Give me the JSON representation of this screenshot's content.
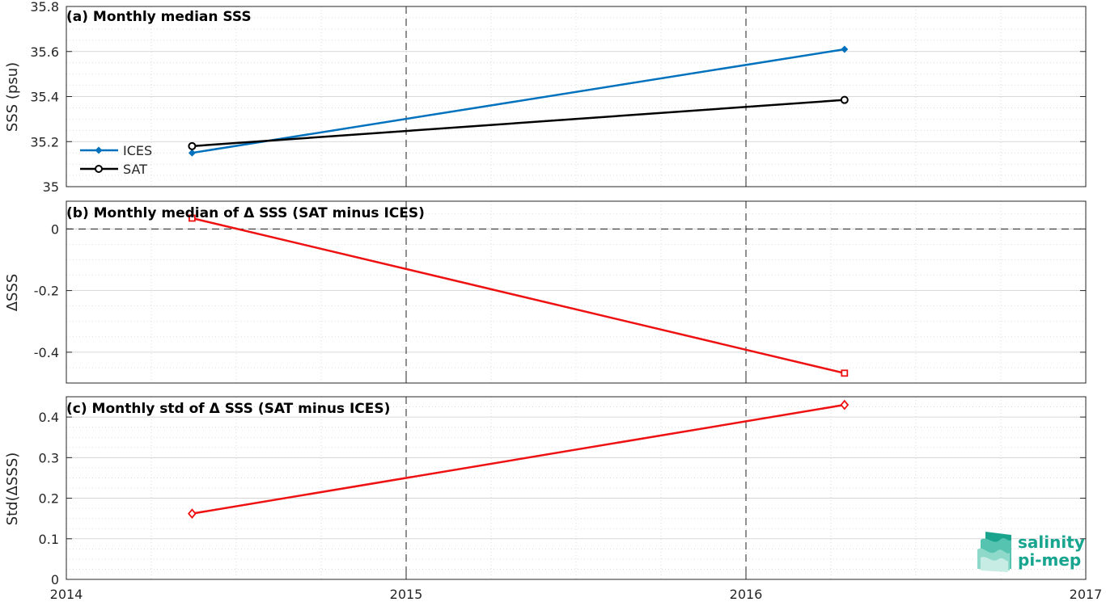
{
  "colors": {
    "ices": "#0072BD",
    "sat": "#000000",
    "delta": "#ee1111",
    "grid_major": "#cfcfcf",
    "axis": "#262626",
    "logo": "#17a58f"
  },
  "x_axis": {
    "range": [
      2014,
      2017
    ],
    "ticks": [
      2014,
      2015,
      2016,
      2017
    ],
    "tick_labels": [
      "2014",
      "2015",
      "2016",
      "2017"
    ],
    "year_lines": [
      2015,
      2016
    ]
  },
  "logo": {
    "line1": "salinity",
    "line2": "pi-mep",
    "icon": "layered-wave-logo-icon"
  },
  "chart_data": [
    {
      "type": "line",
      "title": "(a) Monthly median SSS",
      "ylabel": "SSS (psu)",
      "xlabel": "",
      "xlim": [
        2014,
        2017
      ],
      "ylim": [
        35,
        35.8
      ],
      "yticks": [
        35,
        35.2,
        35.4,
        35.6,
        35.8
      ],
      "ytick_labels": [
        "35",
        "35.2",
        "35.4",
        "35.6",
        "35.8"
      ],
      "grid": true,
      "legend": "left",
      "series": [
        {
          "name": "ICES",
          "marker": "filled-diamond",
          "color": "#0072BD",
          "x": [
            2014.37,
            2016.29
          ],
          "values": [
            35.15,
            35.61
          ]
        },
        {
          "name": "SAT",
          "marker": "circle",
          "color": "#000000",
          "x": [
            2014.37,
            2016.29
          ],
          "values": [
            35.18,
            35.385
          ]
        }
      ]
    },
    {
      "type": "line",
      "title": "(b) Monthly median of Δ SSS (SAT minus ICES)",
      "ylabel": "ΔSSS",
      "xlabel": "",
      "xlim": [
        2014,
        2017
      ],
      "ylim": [
        -0.5,
        0.09
      ],
      "yticks": [
        -0.4,
        -0.2,
        0
      ],
      "ytick_labels": [
        "-0.4",
        "-0.2",
        "0"
      ],
      "zero_line": true,
      "grid": true,
      "series": [
        {
          "marker": "square",
          "color": "#ee1111",
          "x": [
            2014.37,
            2016.29
          ],
          "values": [
            0.035,
            -0.468
          ]
        }
      ]
    },
    {
      "type": "line",
      "title": "(c) Monthly std of Δ SSS (SAT minus ICES)",
      "ylabel": "Std(ΔSSS)",
      "xlabel": "",
      "xlim": [
        2014,
        2017
      ],
      "ylim": [
        0,
        0.45
      ],
      "yticks": [
        0,
        0.1,
        0.2,
        0.3,
        0.4
      ],
      "ytick_labels": [
        "0",
        "0.1",
        "0.2",
        "0.3",
        "0.4"
      ],
      "grid": true,
      "series": [
        {
          "marker": "diamond",
          "color": "#ee1111",
          "x": [
            2014.37,
            2016.29
          ],
          "values": [
            0.162,
            0.43
          ]
        }
      ]
    }
  ]
}
